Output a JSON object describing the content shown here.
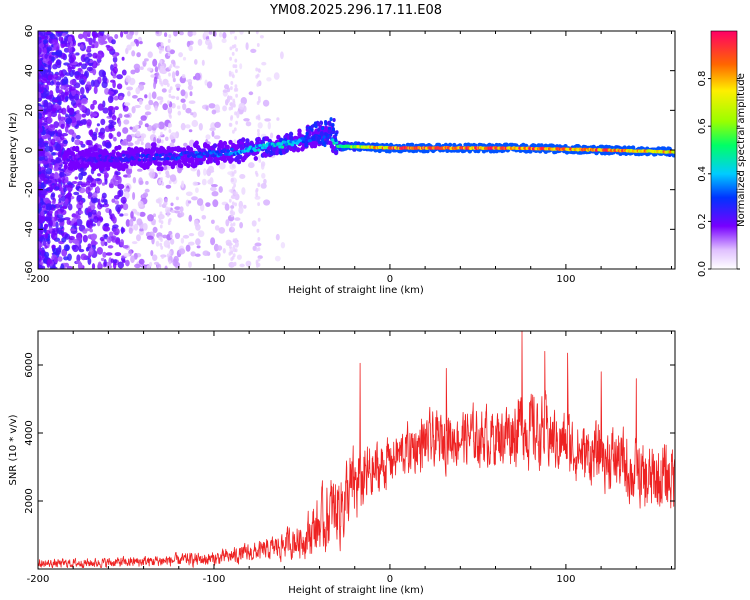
{
  "title": "YM08.2025.296.17.11.E08",
  "chart_data": [
    {
      "type": "heatmap",
      "title": "YM08.2025.296.17.11.E08",
      "xlabel": "Height of straight line (km)",
      "ylabel": "Frequency (Hz)",
      "xlim": [
        -200,
        162
      ],
      "ylim": [
        -60,
        60
      ],
      "xticks": [
        "-200",
        "-100",
        "0",
        "100"
      ],
      "yticks": [
        "-60",
        "-40",
        "-20",
        "0",
        "20",
        "40",
        "60"
      ],
      "colorbar": {
        "label": "Normalized spectral amplitude",
        "range": [
          0,
          1
        ],
        "ticks": [
          "0.0",
          "0.2",
          "0.4",
          "0.6",
          "0.8"
        ]
      },
      "ridge": {
        "description_points": [
          {
            "x": -185,
            "freq": -5,
            "amp": 0.2
          },
          {
            "x": -150,
            "freq": -4,
            "amp": 0.25
          },
          {
            "x": -120,
            "freq": -3,
            "amp": 0.3
          },
          {
            "x": -90,
            "freq": -1,
            "amp": 0.35
          },
          {
            "x": -60,
            "freq": 3,
            "amp": 0.45
          },
          {
            "x": -45,
            "freq": 6,
            "amp": 0.3
          },
          {
            "x": -35,
            "freq": 8,
            "amp": 0.3
          },
          {
            "x": -30,
            "freq": 2,
            "amp": 0.55
          },
          {
            "x": 0,
            "freq": 1,
            "amp": 0.9
          },
          {
            "x": 70,
            "freq": 1,
            "amp": 0.95
          },
          {
            "x": 120,
            "freq": 0,
            "amp": 0.9
          },
          {
            "x": 162,
            "freq": -1,
            "amp": 0.8
          }
        ]
      }
    },
    {
      "type": "line",
      "xlabel": "Height of straight line (km)",
      "ylabel": "SNR (10 * v/v)",
      "xlim": [
        -200,
        162
      ],
      "ylim": [
        0,
        7000
      ],
      "xticks": [
        "-200",
        "-100",
        "0",
        "100"
      ],
      "yticks": [
        "2000",
        "4000",
        "6000"
      ],
      "color": "#ee2222",
      "envelope": {
        "x": [
          -200,
          -150,
          -100,
          -70,
          -50,
          -40,
          -30,
          -20,
          -10,
          0,
          10,
          20,
          40,
          60,
          75,
          90,
          110,
          130,
          145,
          162
        ],
        "mean": [
          150,
          200,
          300,
          550,
          900,
          1300,
          1800,
          2400,
          2800,
          3200,
          3500,
          3700,
          3900,
          3900,
          4200,
          3900,
          3400,
          3200,
          2500,
          2800
        ],
        "amplitude": [
          180,
          220,
          300,
          450,
          800,
          1300,
          1700,
          1800,
          1400,
          1000,
          1100,
          1200,
          1200,
          1300,
          1700,
          1400,
          1300,
          1400,
          1600,
          1500
        ]
      },
      "peaks": [
        {
          "x": 75,
          "y": 7000
        },
        {
          "x": 88,
          "y": 6400
        },
        {
          "x": 101,
          "y": 6350
        },
        {
          "x": -17,
          "y": 6050
        },
        {
          "x": 32,
          "y": 5900
        },
        {
          "x": 120,
          "y": 5800
        },
        {
          "x": 140,
          "y": 5600
        }
      ]
    }
  ]
}
